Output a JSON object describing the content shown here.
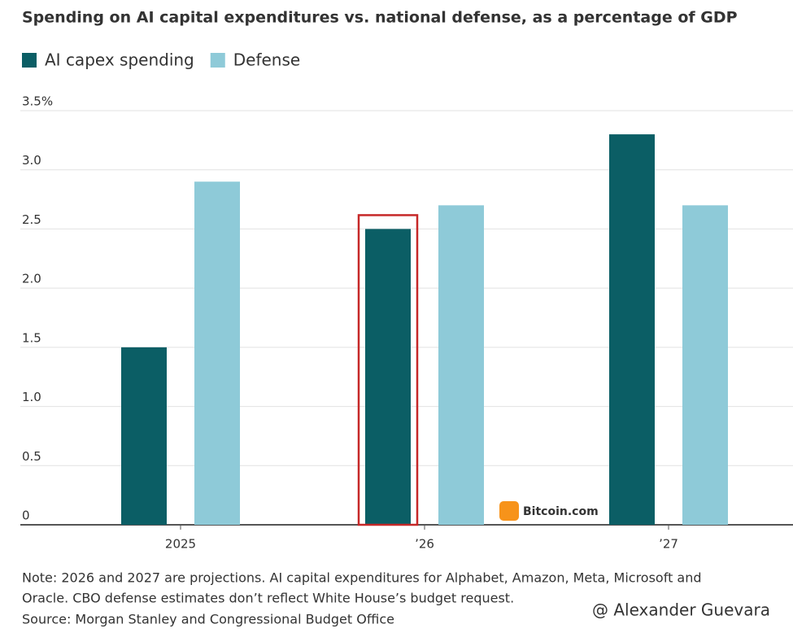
{
  "chart_data": {
    "type": "bar",
    "title": "Spending on AI capital expenditures vs. national defense, as a percentage of GDP",
    "categories": [
      "2025",
      "’26",
      "’27"
    ],
    "series": [
      {
        "name": "AI capex spending",
        "color": "#0b5e65",
        "values": [
          1.5,
          2.5,
          3.3
        ]
      },
      {
        "name": "Defense",
        "color": "#8ecad8",
        "values": [
          2.9,
          2.7,
          2.7
        ]
      }
    ],
    "ylim": [
      0,
      3.5
    ],
    "yticks": [
      0,
      0.5,
      {
        "value": 1,
        "label": "1.0"
      },
      1.5,
      {
        "value": 2,
        "label": "2.0"
      },
      2.5,
      {
        "value": 3,
        "label": "3.0"
      },
      {
        "value": 3.5,
        "label": "3.5%"
      }
    ],
    "grid": true,
    "note": [
      "Note: 2026 and 2027 are projections. AI capital expenditures for Alphabet, Amazon, Meta, Microsoft and",
      "Oracle. CBO defense estimates don’t reflect White House’s budget request."
    ],
    "source": "Source: Morgan Stanley and Congressional Budget Office",
    "watermarks": [
      "Bitcoin.com",
      "@ Alexander Guevara"
    ]
  }
}
